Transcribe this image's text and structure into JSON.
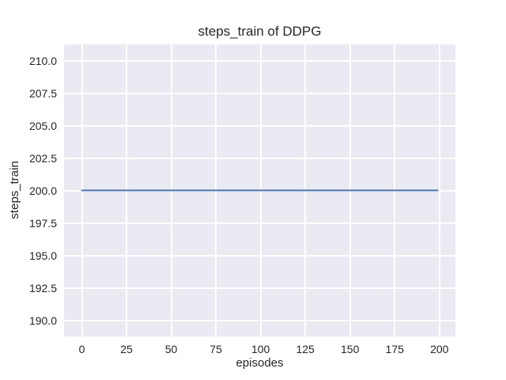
{
  "chart_data": {
    "type": "line",
    "title": "steps_train of DDPG",
    "xlabel": "episodes",
    "ylabel": "steps_train",
    "xlim": [
      -9.95,
      208.95
    ],
    "ylim": [
      188.75,
      211.25
    ],
    "xticks": [
      0,
      25,
      50,
      75,
      100,
      125,
      150,
      175,
      200
    ],
    "xtick_labels": [
      "0",
      "25",
      "50",
      "75",
      "100",
      "125",
      "150",
      "175",
      "200"
    ],
    "yticks": [
      190.0,
      192.5,
      195.0,
      197.5,
      200.0,
      202.5,
      205.0,
      207.5,
      210.0
    ],
    "ytick_labels": [
      "190.0",
      "192.5",
      "195.0",
      "197.5",
      "200.0",
      "202.5",
      "205.0",
      "207.5",
      "210.0"
    ],
    "grid": true,
    "legend": "none",
    "series": [
      {
        "name": "DDPG",
        "x": [
          0,
          199
        ],
        "y": [
          200,
          200
        ],
        "color": "#4c72b0"
      }
    ],
    "colors": {
      "figure_bg": "#ffffff",
      "plot_bg": "#eaeaf2",
      "grid": "#ffffff",
      "text": "#262626"
    }
  }
}
